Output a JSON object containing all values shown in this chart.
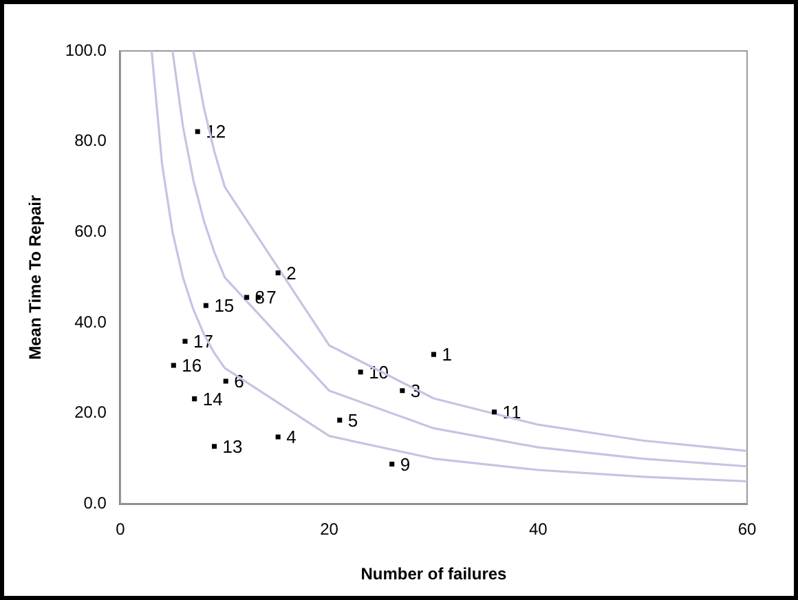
{
  "chart_data": {
    "type": "scatter",
    "xlabel": "Number of failures",
    "ylabel": "Mean Time To Repair",
    "xlim": [
      0,
      60
    ],
    "xticks": [
      0,
      20,
      40,
      60
    ],
    "ylim": [
      0,
      100
    ],
    "yticks": [
      {
        "value": 0,
        "label": "0.0"
      },
      {
        "value": 20,
        "label": "20.0"
      },
      {
        "value": 40,
        "label": "40.0"
      },
      {
        "value": 60,
        "label": "60.0"
      },
      {
        "value": 80,
        "label": "80.0"
      },
      {
        "value": 100,
        "label": "100.0"
      }
    ],
    "grid": false,
    "legend": false,
    "marker": "square",
    "series": [
      {
        "type": "scatter",
        "color": "#000000",
        "x": [
          30,
          15.1,
          27,
          15.1,
          21,
          10.1,
          13.2,
          12.1,
          26,
          23,
          35.8,
          7.4,
          9,
          7.1,
          8.2,
          5.1,
          6.2
        ],
        "values": [
          33,
          51,
          25,
          14.8,
          18.5,
          27.1,
          45.6,
          45.6,
          8.8,
          29.1,
          20.3,
          82.2,
          12.7,
          23.2,
          43.8,
          30.6,
          35.9
        ]
      },
      {
        "type": "line",
        "color": "#c4c4e4",
        "marker": "none",
        "x": [
          7,
          8,
          9,
          10,
          20,
          30,
          40,
          50,
          60
        ],
        "values": [
          100,
          87.5,
          77.8,
          70,
          35,
          23.3,
          17.5,
          14,
          11.7
        ]
      },
      {
        "type": "line",
        "color": "#c4c4e4",
        "marker": "none",
        "x": [
          5,
          6,
          7,
          8,
          9,
          10,
          20,
          30,
          40,
          50,
          60
        ],
        "values": [
          100,
          83.3,
          71.4,
          62.5,
          55.6,
          50,
          25,
          16.7,
          12.5,
          10,
          8.3
        ]
      },
      {
        "type": "line",
        "color": "#c4c4e4",
        "marker": "none",
        "x": [
          3,
          4,
          5,
          6,
          7,
          8,
          9,
          10,
          20,
          30,
          40,
          50,
          60
        ],
        "values": [
          100,
          75,
          60,
          50,
          42.9,
          37.5,
          33.3,
          30,
          15,
          10,
          7.5,
          6,
          5
        ]
      }
    ],
    "annotations": [
      {
        "text": "1",
        "x": 30,
        "y": 33
      },
      {
        "text": "2",
        "x": 15.1,
        "y": 51
      },
      {
        "text": "3",
        "x": 27,
        "y": 25
      },
      {
        "text": "4",
        "x": 15.1,
        "y": 14.8
      },
      {
        "text": "5",
        "x": 21,
        "y": 18.5
      },
      {
        "text": "6",
        "x": 10.1,
        "y": 27.1
      },
      {
        "text": "7",
        "x": 13.2,
        "y": 45.6
      },
      {
        "text": "8",
        "x": 12.1,
        "y": 45.6
      },
      {
        "text": "9",
        "x": 26,
        "y": 8.8
      },
      {
        "text": "10",
        "x": 23,
        "y": 29.1
      },
      {
        "text": "11",
        "x": 35.8,
        "y": 20.3
      },
      {
        "text": "12",
        "x": 7.4,
        "y": 82.2
      },
      {
        "text": "13",
        "x": 9,
        "y": 12.7
      },
      {
        "text": "14",
        "x": 7.1,
        "y": 23.2
      },
      {
        "text": "15",
        "x": 8.2,
        "y": 43.8
      },
      {
        "text": "16",
        "x": 5.1,
        "y": 30.6
      },
      {
        "text": "17",
        "x": 6.2,
        "y": 35.9
      }
    ]
  }
}
